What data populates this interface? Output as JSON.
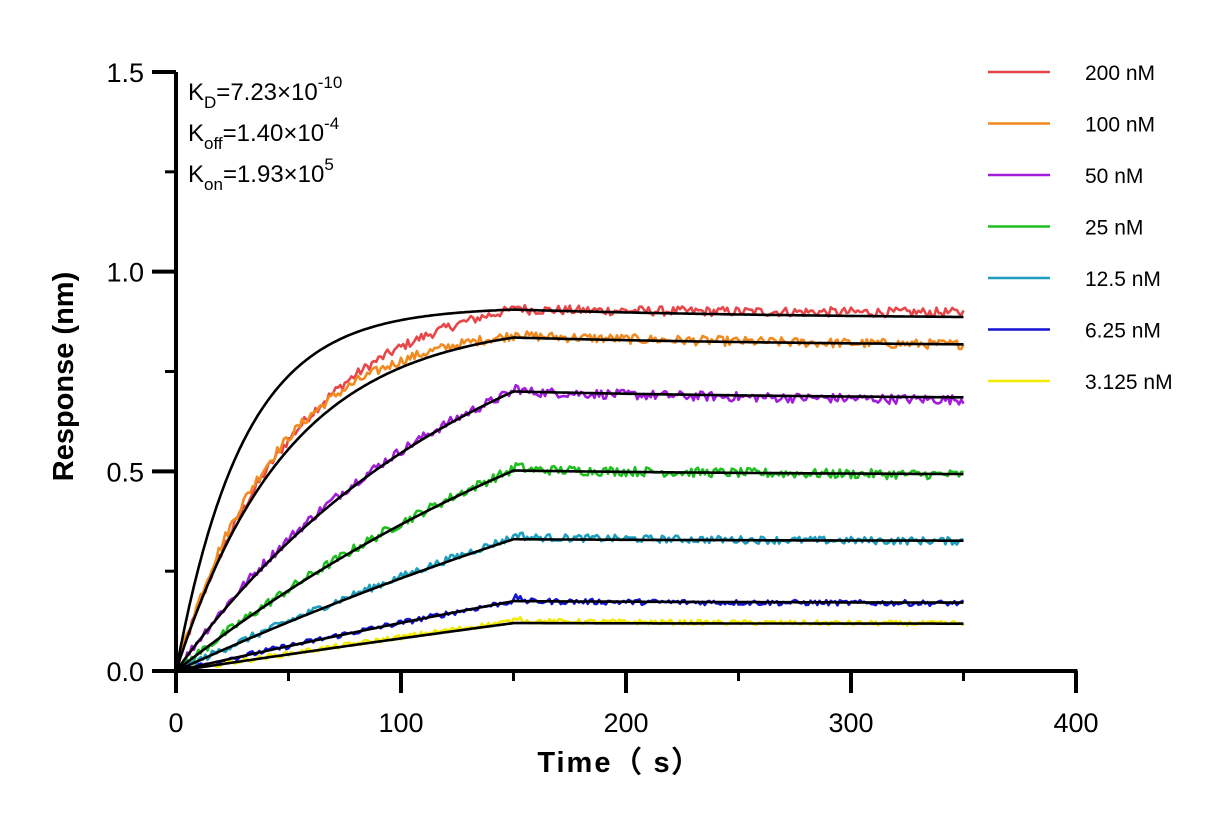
{
  "chart_data": {
    "type": "line",
    "xlabel": "Time（ s）",
    "ylabel": "Response (nm)",
    "xlim": [
      0,
      400
    ],
    "ylim": [
      0,
      1.5
    ],
    "x_ticks": [
      "0",
      "100",
      "200",
      "300",
      "400"
    ],
    "y_ticks": [
      "0.0",
      "0.5",
      "1.0",
      "1.5"
    ],
    "grid": false,
    "legend_position": "top-right",
    "association_end_s": 150,
    "experiment_end_s": 350,
    "annotations": {
      "kd": {
        "main": "K",
        "sub": "D",
        "value": "=7.23×10",
        "exp": "-10"
      },
      "koff": {
        "main": "K",
        "sub": "off",
        "value": "=1.40×10",
        "exp": "-4"
      },
      "kon": {
        "main": "K",
        "sub": "on",
        "value": "=1.93×10",
        "exp": "5"
      }
    },
    "fit_color": "#000000",
    "series": [
      {
        "name": "200 nM",
        "color": "#e8474a",
        "plateau": 0.905,
        "tau": 55,
        "end": 0.895
      },
      {
        "name": "100 nM",
        "color": "#f28a1f",
        "plateau": 0.84,
        "tau": 45,
        "end": 0.81
      },
      {
        "name": "50 nM",
        "color": "#a21cdb",
        "plateau": 0.7,
        "tau": 125,
        "end": 0.672
      },
      {
        "name": "25 nM",
        "color": "#1fbf1f",
        "plateau": 0.505,
        "tau": 240,
        "end": 0.487
      },
      {
        "name": "12.5 nM",
        "color": "#1e9fbf",
        "plateau": 0.335,
        "tau": 420,
        "end": 0.322
      },
      {
        "name": "6.25 nM",
        "color": "#1414d4",
        "plateau": 0.175,
        "tau": 700,
        "end": 0.168
      },
      {
        "name": "3.125 nM",
        "color": "#f2ea00",
        "plateau": 0.125,
        "tau": 1200,
        "end": 0.117
      }
    ],
    "fits": [
      {
        "plateau": 0.905,
        "tau": 30,
        "end": 0.88
      },
      {
        "plateau": 0.835,
        "tau": 50,
        "end": 0.812
      },
      {
        "plateau": 0.7,
        "tau": 135,
        "end": 0.68
      },
      {
        "plateau": 0.502,
        "tau": 250,
        "end": 0.49
      },
      {
        "plateau": 0.33,
        "tau": 450,
        "end": 0.325
      },
      {
        "plateau": 0.175,
        "tau": 750,
        "end": 0.17
      },
      {
        "plateau": 0.12,
        "tau": 1300,
        "end": 0.118
      }
    ]
  }
}
